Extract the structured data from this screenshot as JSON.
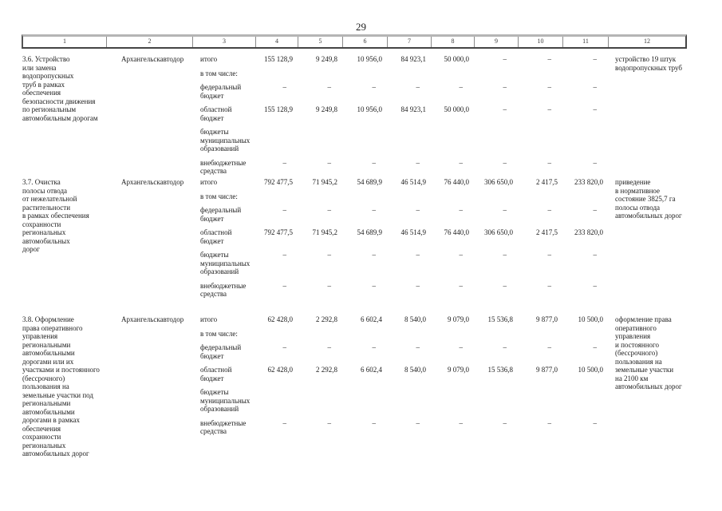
{
  "page": {
    "number": "29"
  },
  "table": {
    "column_headers": [
      "1",
      "2",
      "3",
      "4",
      "5",
      "6",
      "7",
      "8",
      "9",
      "10",
      "11",
      "12"
    ],
    "budget_labels": [
      "итого",
      "в том числе:",
      "федеральный\nбюджет",
      "областной\nбюджет",
      "бюджеты\nмуниципальных\nобразований",
      "внебюджетные\nсредства"
    ],
    "rows": [
      {
        "name": "3.6. Устройство\nили замена\nводопропускных\nтруб в рамках\nобеспечения\nбезопасности движения\nпо региональным\nавтомобильным дорогам",
        "executor": "Архангельскавтодор",
        "value_rows": [
          [
            "155 128,9",
            "9 249,8",
            "10 956,0",
            "84 923,1",
            "50 000,0",
            "–",
            "–",
            "–"
          ],
          null,
          [
            "–",
            "–",
            "–",
            "–",
            "–",
            "–",
            "–",
            "–"
          ],
          [
            "155 128,9",
            "9 249,8",
            "10 956,0",
            "84 923,1",
            "50 000,0",
            "–",
            "–",
            "–"
          ],
          [
            "",
            "",
            "",
            "",
            "",
            "",
            "",
            ""
          ],
          [
            "–",
            "–",
            "–",
            "–",
            "–",
            "–",
            "–",
            "–"
          ]
        ],
        "result": "устройство 19 штук\nводопропускных труб"
      },
      {
        "name": "3.7. Очистка\nполосы отвода\nот нежелательной\nрастительности\nв рамках обеспечения\nсохранности\nрегиональных\nавтомобильных\nдорог",
        "executor": "Архангельскавтодор",
        "value_rows": [
          [
            "792 477,5",
            "71 945,2",
            "54 689,9",
            "46 514,9",
            "76 440,0",
            "306 650,0",
            "2 417,5",
            "233 820,0"
          ],
          null,
          [
            "–",
            "–",
            "–",
            "–",
            "–",
            "–",
            "–",
            "–"
          ],
          [
            "792 477,5",
            "71 945,2",
            "54 689,9",
            "46 514,9",
            "76 440,0",
            "306 650,0",
            "2 417,5",
            "233 820,0"
          ],
          [
            "–",
            "–",
            "–",
            "–",
            "–",
            "–",
            "–",
            "–"
          ],
          [
            "–",
            "–",
            "–",
            "–",
            "–",
            "–",
            "–",
            "–"
          ]
        ],
        "result": "приведение\nв нормативное\nсостояние 3825,7 га\nполосы отвода\nавтомобильных дорог"
      },
      {
        "name": "3.8. Оформление\nправа оперативного\nуправления\nрегиональными\nавтомобильными\nдорогами или их\nучастками и постоянного\n(бессрочного)\nпользования на\nземельные участки под\nрегиональными\nавтомобильными\nдорогами в рамках\nобеспечения\nсохранности\nрегиональных\nавтомобильных дорог",
        "executor": "Архангельскавтодор",
        "value_rows": [
          [
            "62 428,0",
            "2 292,8",
            "6 602,4",
            "8 540,0",
            "9 079,0",
            "15 536,8",
            "9 877,0",
            "10 500,0"
          ],
          null,
          [
            "–",
            "–",
            "–",
            "–",
            "–",
            "–",
            "–",
            "–"
          ],
          [
            "62 428,0",
            "2 292,8",
            "6 602,4",
            "8 540,0",
            "9 079,0",
            "15 536,8",
            "9 877,0",
            "10 500,0"
          ],
          [
            "",
            "",
            "",
            "",
            "",
            "",
            "",
            ""
          ],
          [
            "–",
            "–",
            "–",
            "–",
            "–",
            "–",
            "–",
            "–"
          ]
        ],
        "result": "оформление права\nоперативного\nуправления\nи постоянного\n(бессрочного)\nпользования на\nземельные участки\nна 2100 км\nавтомобильных дорог"
      }
    ]
  }
}
